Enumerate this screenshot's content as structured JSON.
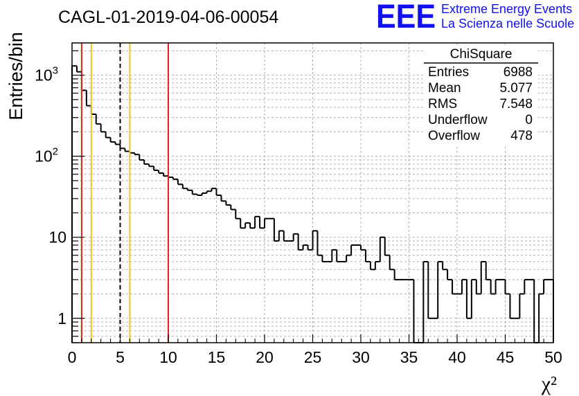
{
  "title": "CAGL-01-2019-04-06-00054",
  "logo": {
    "mark": "EEE",
    "line1": "Extreme Energy Events",
    "line2": "La Scienza nelle Scuole",
    "color": "#1010f0"
  },
  "stats": {
    "title": "ChiSquare",
    "rows": [
      {
        "label": "Entries",
        "value": "6988"
      },
      {
        "label": "Mean",
        "value": "5.077"
      },
      {
        "label": "RMS",
        "value": "7.548"
      },
      {
        "label": "Underflow",
        "value": "0"
      },
      {
        "label": "Overflow",
        "value": "478"
      }
    ]
  },
  "chart_data": {
    "type": "histogram",
    "title": "CAGL-01-2019-04-06-00054",
    "xlabel": "χ²",
    "ylabel": "Entries/bin",
    "xlim": [
      0,
      50
    ],
    "ylim": [
      0.5,
      2500
    ],
    "yscale": "log",
    "grid": true,
    "bin_width": 0.5,
    "x_ticks": [
      0,
      5,
      10,
      15,
      20,
      25,
      30,
      35,
      40,
      45,
      50
    ],
    "x_tick_labels": [
      "0",
      "5",
      "10",
      "15",
      "20",
      "25",
      "30",
      "35",
      "40",
      "45",
      "50"
    ],
    "y_ticks": [
      1,
      10,
      100,
      1000
    ],
    "y_tick_labels": [
      "1",
      "10",
      "10²",
      "10³"
    ],
    "bin_counts": [
      1300,
      1100,
      650,
      420,
      330,
      250,
      200,
      170,
      150,
      140,
      125,
      115,
      110,
      105,
      90,
      80,
      75,
      67,
      62,
      57,
      55,
      52,
      45,
      40,
      38,
      34,
      33,
      35,
      37,
      40,
      33,
      28,
      25,
      22,
      17,
      13,
      15,
      13,
      18,
      13,
      17,
      17,
      9,
      12,
      9,
      9,
      11,
      7,
      8,
      7,
      12,
      6,
      5,
      5,
      7,
      5,
      5,
      6,
      8,
      8,
      7,
      5,
      4,
      5,
      10,
      6,
      4,
      3,
      3,
      3,
      3,
      0,
      0,
      5,
      1,
      1,
      5,
      4,
      3,
      2,
      2,
      3,
      1,
      3,
      2,
      5,
      3,
      2,
      3,
      3,
      2,
      1,
      1,
      2,
      3,
      3,
      0,
      2,
      3,
      3
    ],
    "vertical_lines": [
      {
        "x": 1,
        "color": "#e8201a",
        "style": "solid"
      },
      {
        "x": 2,
        "color": "#f0c419",
        "style": "solid"
      },
      {
        "x": 5,
        "color": "#000000",
        "style": "dashed"
      },
      {
        "x": 6,
        "color": "#f0c419",
        "style": "solid"
      },
      {
        "x": 10,
        "color": "#e8201a",
        "style": "solid"
      }
    ]
  }
}
